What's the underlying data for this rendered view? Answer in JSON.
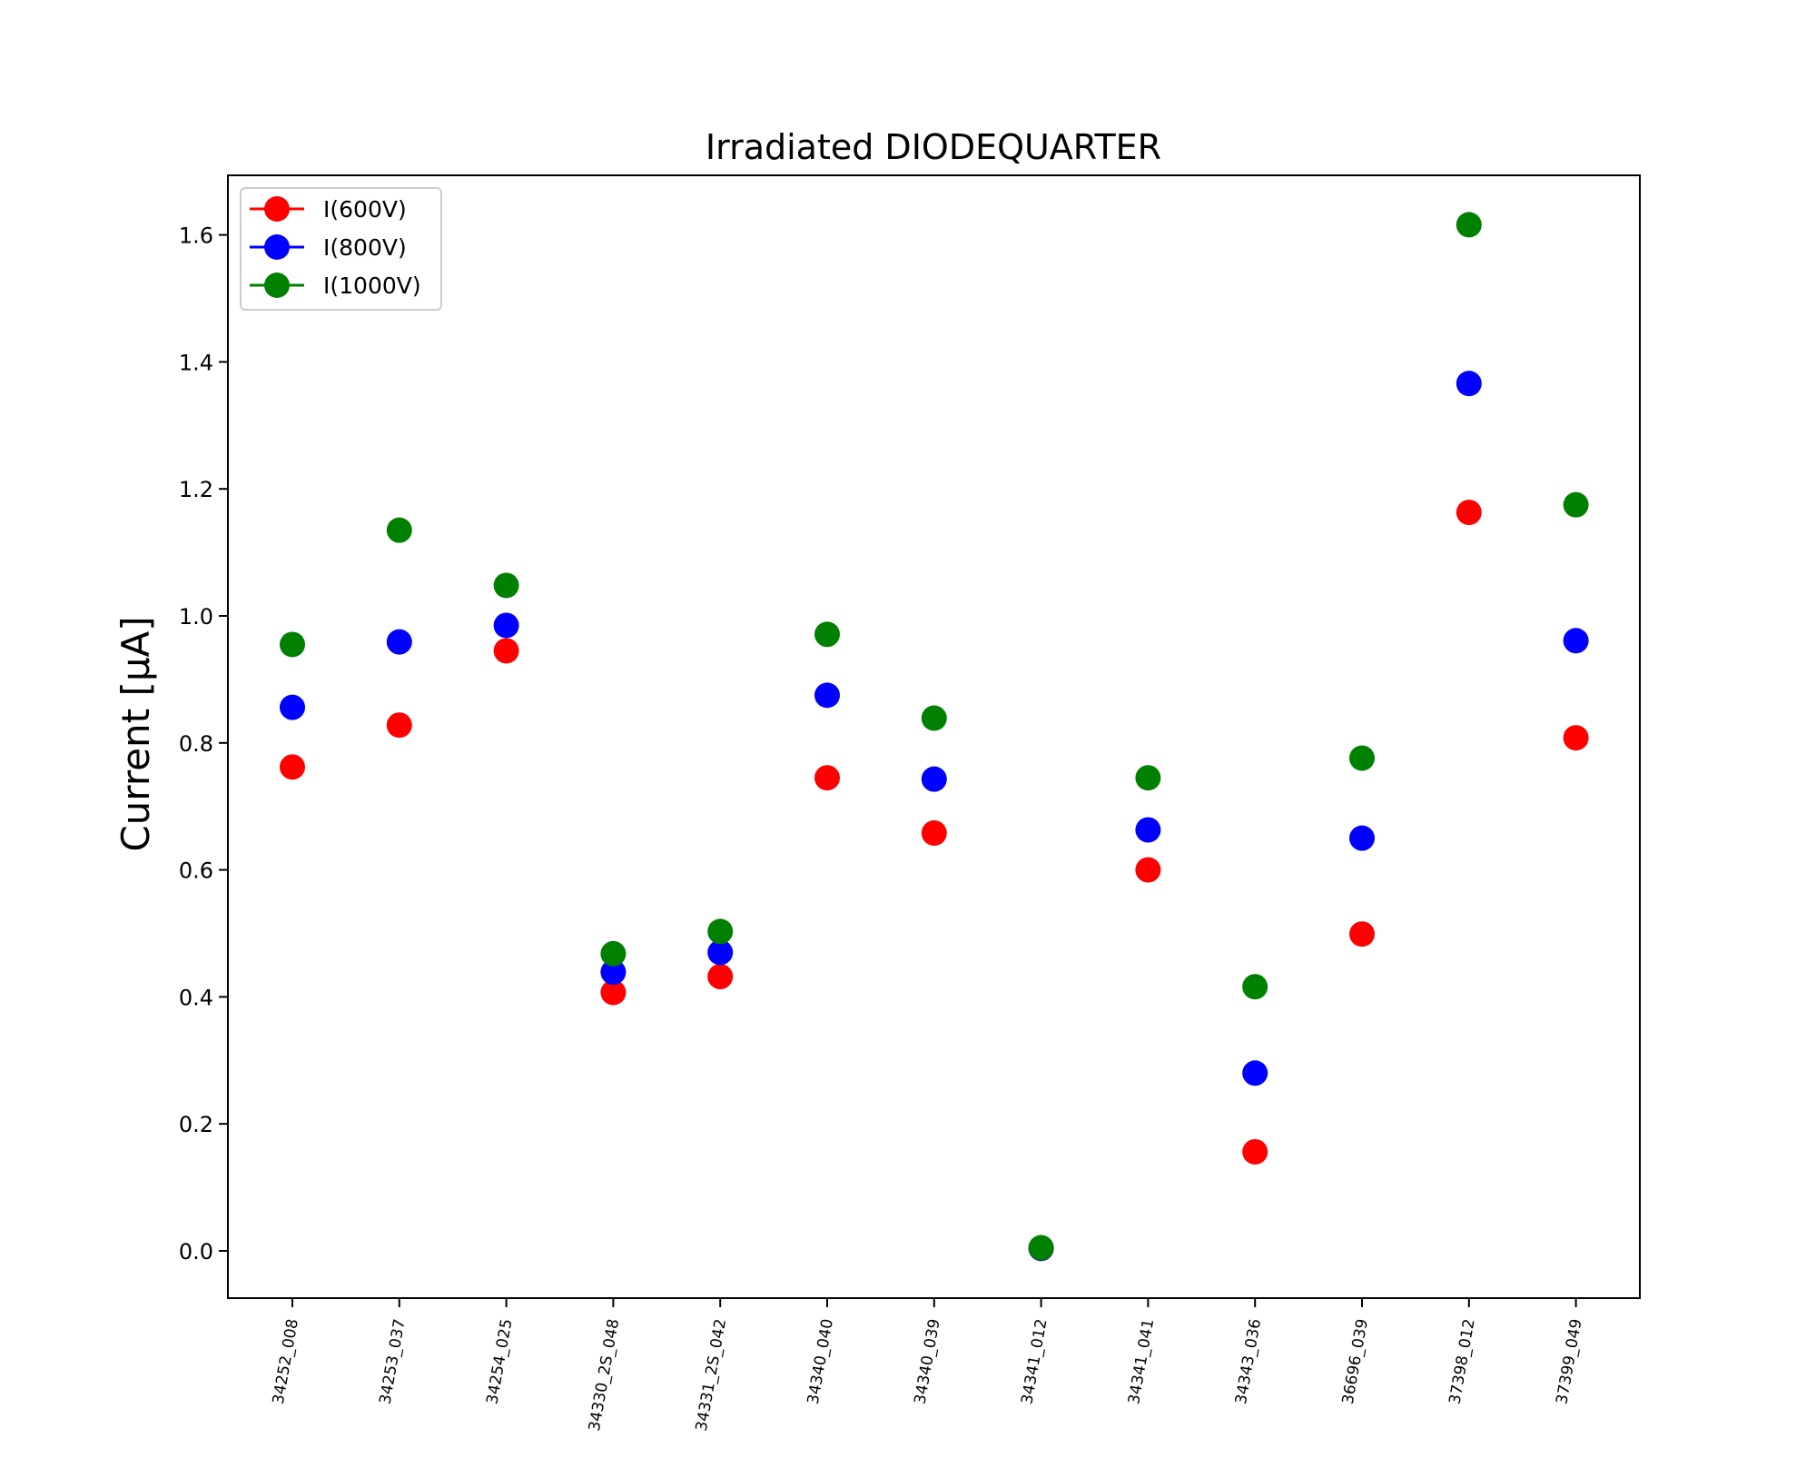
{
  "chart_data": {
    "type": "scatter",
    "title": "Irradiated DIODEQUARTER",
    "xlabel": "",
    "ylabel": "Current [μA]",
    "ylim": [
      -0.075,
      1.7
    ],
    "yticks": [
      0.0,
      0.2,
      0.4,
      0.6,
      0.8,
      1.0,
      1.2,
      1.4,
      1.6
    ],
    "ytick_labels": [
      "0.0",
      "0.2",
      "0.4",
      "0.6",
      "0.8",
      "1.0",
      "1.2",
      "1.4",
      "1.6"
    ],
    "grid": false,
    "legend_position": "top-left",
    "categories": [
      "34252_008",
      "34253_037",
      "34254_025",
      "34330_2S_048",
      "34331_2S_042",
      "34340_040",
      "34340_039",
      "34341_012",
      "34341_041",
      "34343_036",
      "36696_039",
      "37398_012",
      "37399_049"
    ],
    "series": [
      {
        "name": "I(600V)",
        "color": "#ff0000",
        "values": [
          0.762,
          0.828,
          0.945,
          0.407,
          0.432,
          0.745,
          0.658,
          0.004,
          0.6,
          0.156,
          0.499,
          1.163,
          0.808
        ]
      },
      {
        "name": "I(800V)",
        "color": "#0000ff",
        "values": [
          0.856,
          0.959,
          0.985,
          0.439,
          0.47,
          0.875,
          0.743,
          0.004,
          0.663,
          0.28,
          0.65,
          1.366,
          0.961
        ]
      },
      {
        "name": "I(1000V)",
        "color": "#008000",
        "values": [
          0.955,
          1.135,
          1.048,
          0.468,
          0.503,
          0.971,
          0.839,
          0.005,
          0.745,
          0.416,
          0.776,
          1.616,
          1.175
        ]
      }
    ]
  }
}
